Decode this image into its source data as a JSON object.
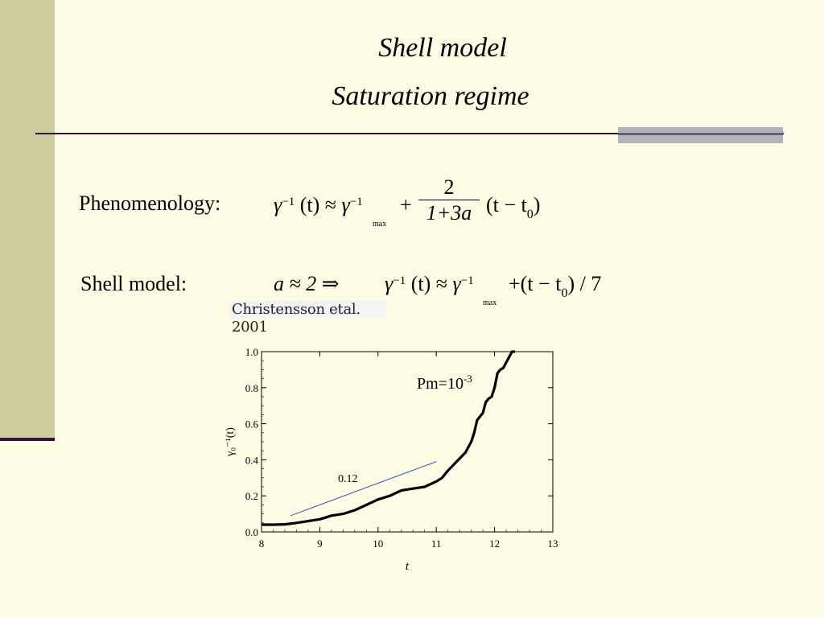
{
  "slide": {
    "title_line1": "Shell model",
    "title_line2": "Saturation regime",
    "phenomenology_label": "Phenomenology:",
    "shell_model_label": "Shell model:",
    "citation": "Christensson etal. 2001",
    "eq1": {
      "gamma": "γ",
      "inv": "−1",
      "t_arg": "(t)",
      "approx": "≈",
      "max_sub": "max",
      "plus": "+",
      "numerator": "2",
      "denominator": "1+3a",
      "paren": "(t − t",
      "sub0": "0",
      "close": ")"
    },
    "eq2": {
      "lhs": "a ≈ 2  ⇒",
      "gamma": "γ",
      "inv": "−1",
      "t_arg": "(t)",
      "approx": "≈",
      "max_sub": "max",
      "rhs": "+(t − t",
      "sub0": "0",
      "close": ") / 7"
    },
    "colors": {
      "background": "#FCFCE4",
      "sidebar": "#CCCC9E",
      "rule": "#3A1030",
      "curve": "#000000",
      "slope_line": "#4455AA"
    }
  },
  "chart_data": {
    "type": "line",
    "xlabel": "t",
    "ylabel": "γ₀⁻¹(t)",
    "xlim": [
      8,
      13
    ],
    "ylim": [
      0,
      1.0
    ],
    "xticks": [
      8,
      9,
      10,
      11,
      12,
      13
    ],
    "yticks": [
      "0.0",
      "0.2",
      "0.4",
      "0.6",
      "0.8",
      "1.0"
    ],
    "annotation": "Pm=10",
    "annotation_exp": "-3",
    "slope_label": "0.12",
    "series": [
      {
        "x": [
          8.0,
          8.2,
          8.4,
          8.6,
          8.8,
          9.0,
          9.2,
          9.4,
          9.6,
          9.8,
          10.0,
          10.2,
          10.4,
          10.6,
          10.8,
          11.0,
          11.1,
          11.2,
          11.35,
          11.5,
          11.6,
          11.65,
          11.7,
          11.75,
          11.8,
          11.85,
          11.9,
          11.95,
          12.0,
          12.05,
          12.1,
          12.15,
          12.2,
          12.25,
          12.3,
          12.35
        ],
        "y": [
          0.04,
          0.04,
          0.042,
          0.05,
          0.06,
          0.07,
          0.09,
          0.1,
          0.12,
          0.15,
          0.18,
          0.2,
          0.23,
          0.24,
          0.25,
          0.28,
          0.3,
          0.34,
          0.39,
          0.44,
          0.5,
          0.55,
          0.62,
          0.64,
          0.66,
          0.72,
          0.74,
          0.75,
          0.8,
          0.88,
          0.9,
          0.91,
          0.94,
          0.97,
          1.0,
          1.02
        ]
      },
      {
        "x": [
          8.5,
          11.0
        ],
        "y": [
          0.09,
          0.39
        ]
      }
    ]
  }
}
